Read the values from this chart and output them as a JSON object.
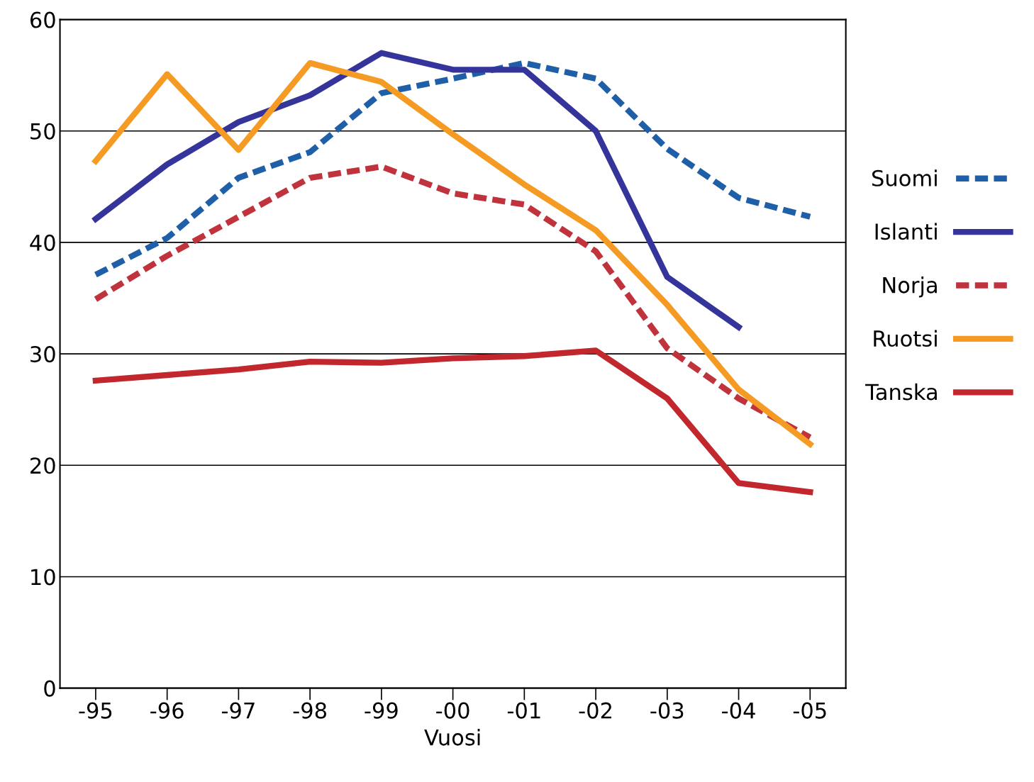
{
  "chart_data": {
    "type": "line",
    "xlabel": "Vuosi",
    "categories": [
      "-95",
      "-96",
      "-97",
      "-98",
      "-99",
      "-00",
      "-01",
      "-02",
      "-03",
      "-04",
      "-05"
    ],
    "series": [
      {
        "name": "Suomi",
        "color": "#1f5fa8",
        "line_style": "dashed",
        "values": [
          37.1,
          40.4,
          45.8,
          48.1,
          53.4,
          54.7,
          56.1,
          54.7,
          48.4,
          44.0,
          42.3
        ]
      },
      {
        "name": "Islanti",
        "color": "#34349a",
        "line_style": "solid",
        "values": [
          42.1,
          47.0,
          50.8,
          53.2,
          57.0,
          55.5,
          55.5,
          50.0,
          36.9,
          32.4,
          null
        ]
      },
      {
        "name": "Norja",
        "color": "#c0323c",
        "line_style": "dashed",
        "values": [
          34.9,
          38.8,
          42.3,
          45.8,
          46.8,
          44.4,
          43.4,
          39.2,
          30.5,
          26.0,
          22.5
        ]
      },
      {
        "name": "Ruotsi",
        "color": "#f59a23",
        "line_style": "solid",
        "values": [
          47.3,
          55.1,
          48.3,
          56.1,
          54.4,
          49.7,
          45.2,
          41.1,
          34.4,
          26.8,
          21.9
        ]
      },
      {
        "name": "Tanska",
        "color": "#c1272d",
        "line_style": "solid",
        "values": [
          27.6,
          28.1,
          28.6,
          29.3,
          29.2,
          29.6,
          29.8,
          30.3,
          26.0,
          18.4,
          17.6
        ]
      }
    ],
    "ylim": [
      0,
      60
    ],
    "yticks": [
      0,
      10,
      20,
      30,
      40,
      50,
      60
    ],
    "grid": "y",
    "legend": "right",
    "marker": "none"
  }
}
